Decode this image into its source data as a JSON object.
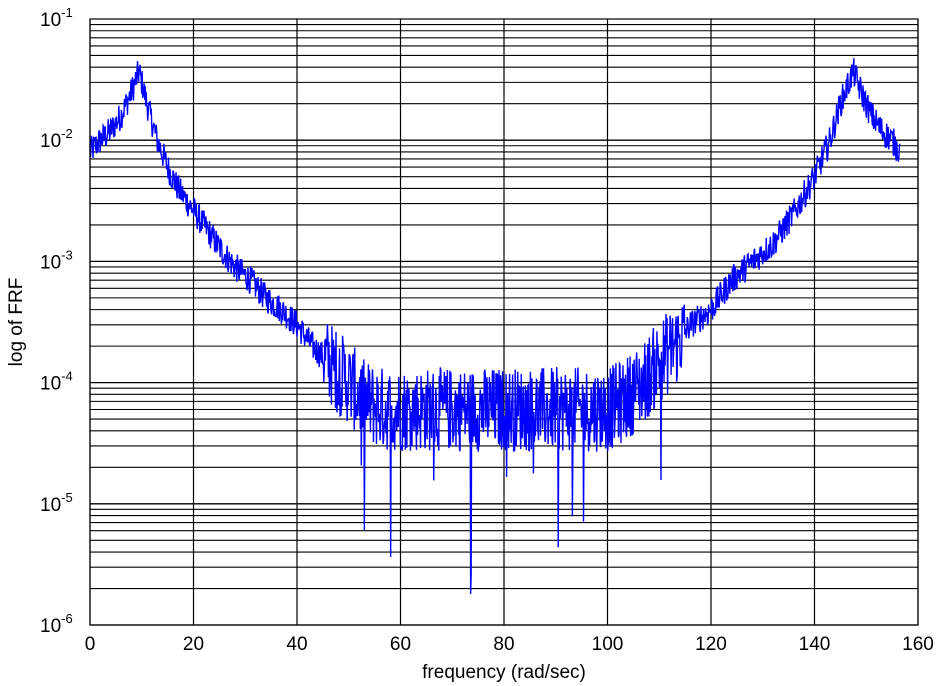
{
  "chart_data": {
    "type": "line",
    "title": "",
    "xlabel": "frequency (rad/sec)",
    "ylabel": "log of FRF",
    "xlim": [
      0,
      160
    ],
    "ylim": [
      1e-06,
      0.1
    ],
    "yscale": "log",
    "grid": true,
    "x_ticks": [
      0,
      20,
      40,
      60,
      80,
      100,
      120,
      140,
      160
    ],
    "x_tick_labels": [
      "0",
      "20",
      "40",
      "60",
      "80",
      "100",
      "120",
      "140",
      "160"
    ],
    "y_ticks": [
      1e-06,
      1e-05,
      0.0001,
      0.001,
      0.01,
      0.1
    ],
    "y_tick_labels": [
      {
        "base": "10",
        "exp": "-6"
      },
      {
        "base": "10",
        "exp": "-5"
      },
      {
        "base": "10",
        "exp": "-4"
      },
      {
        "base": "10",
        "exp": "-3"
      },
      {
        "base": "10",
        "exp": "-2"
      },
      {
        "base": "10",
        "exp": "-1"
      }
    ],
    "series": [
      {
        "color": "#0000ff",
        "x": [
          0,
          2,
          4,
          6,
          8,
          9.5,
          11,
          13,
          15,
          17,
          19,
          22,
          25,
          28,
          31,
          34,
          37,
          40,
          43,
          46,
          50,
          53,
          57,
          60,
          63,
          67,
          70,
          73,
          77,
          79,
          80,
          83,
          87,
          90,
          93,
          97,
          100,
          103,
          107,
          110,
          113,
          116,
          120,
          124,
          128,
          132,
          136,
          140,
          143,
          145,
          147.5,
          149,
          151,
          153,
          155,
          156.5
        ],
        "y": [
          0.008,
          0.01,
          0.012,
          0.016,
          0.025,
          0.037,
          0.02,
          0.01,
          0.006,
          0.004,
          0.003,
          0.002,
          0.0013,
          0.0009,
          0.0007,
          0.0005,
          0.0004,
          0.0003,
          0.0002,
          0.00015,
          0.0001,
          7e-05,
          6e-05,
          6e-05,
          6e-05,
          6e-05,
          6e-05,
          6e-05,
          6e-05,
          6e-05,
          6e-05,
          6e-05,
          6e-05,
          6e-05,
          6e-05,
          6e-05,
          6e-05,
          7e-05,
          0.0001,
          0.00015,
          0.0002,
          0.0003,
          0.0004,
          0.0007,
          0.001,
          0.0014,
          0.0025,
          0.005,
          0.01,
          0.02,
          0.037,
          0.025,
          0.016,
          0.012,
          0.01,
          0.008
        ]
      }
    ]
  }
}
